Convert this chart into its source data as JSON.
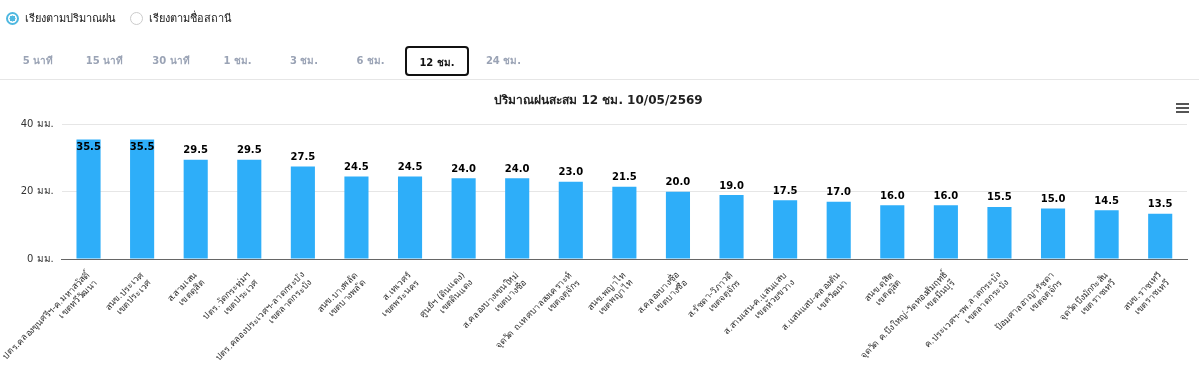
{
  "chart_data": {
    "type": "bar",
    "title": "ปริมาณฝนสะสม 12 ชม. 10/05/2569",
    "categories": [
      "ปตร.คลองขุนศรีฯ-ค.มหาสวัสดิ์\nเขตทวีวัฒนา",
      "สนข.ประเวศ\nเขตประเวศ",
      "ส.สามเสน\nเขตดุสิต",
      "ปตร.วัดกระทุ่มฯ\nเขตประเวศ",
      "ปตร.คลองประเวศฯ-ลาดกระบัง\nเขตลาดกระบัง",
      "สนข.บางพลัด\nเขตบางพลัด",
      "ส.เทเวศร์\nเขตพระนคร",
      "ศูนย์ฯ (ดินแดง)\nเขตดินแดง",
      "ส.คลองบางเขนใหม่\nเขตบางซื่อ",
      "จุดวัด ถ.เทศบาลสงเคราะห์\nเขตจตุจักร",
      "สนข.พญาไท\nเขตพญาไท",
      "ส.คลองบางซื่อ\nเขตบางซื่อ",
      "ส.รัชดา-วิภาวดี\nเขตจตุจักร",
      "ส.สามเสน-ค.แสนแสบ\nเขตห้วยขวาง",
      "ส.แสนแสบ-คลองตัน\nเขตวัฒนา",
      "สนข.ดุสิต\nเขตดุสิต",
      "จุดวัด ค.บึงใหญ่-วัดทองสัมฤทธิ์\nเขตมีนบุรี",
      "ค.ประเวศฯ-รพ.ลาดกระบัง\nเขตลาดกระบัง",
      "ป้อมศาลอาญารัชดา\nเขตจตุจักร",
      "จุดวัดบึงมักกะสัน\nเขตราชเทวี",
      "สนข.ราชเทวี\nเขตราชเทวี"
    ],
    "values": [
      35.5,
      35.5,
      29.5,
      29.5,
      27.5,
      24.5,
      24.5,
      24.0,
      24.0,
      23.0,
      21.5,
      20.0,
      19.0,
      17.5,
      17.0,
      16.0,
      16.0,
      15.5,
      15.0,
      14.5,
      13.5
    ],
    "value_labels": [
      "35.5",
      "35.5",
      "29.5",
      "29.5",
      "27.5",
      "24.5",
      "24.5",
      "24.0",
      "24.0",
      "23.0",
      "21.5",
      "20.0",
      "19.0",
      "17.5",
      "17.0",
      "16.0",
      "16.0",
      "15.5",
      "15.0",
      "14.5",
      "13.5"
    ],
    "color": "#2eaef9",
    "ylim": [
      0,
      40
    ],
    "yticks": [
      {
        "value": 0,
        "label": "0 มม."
      },
      {
        "value": 20,
        "label": "20 มม."
      },
      {
        "value": 40,
        "label": "40 มม."
      }
    ],
    "grid": "y",
    "annotations": [
      "เรียงตามปริมาณฝน",
      "เรียงตามชื่อสถานี",
      "5 นาที",
      "15 นาที",
      "30 นาที",
      "1 ชม.",
      "3 ชม.",
      "6 ชม.",
      "12 ชม.",
      "24 ชม."
    ]
  }
}
